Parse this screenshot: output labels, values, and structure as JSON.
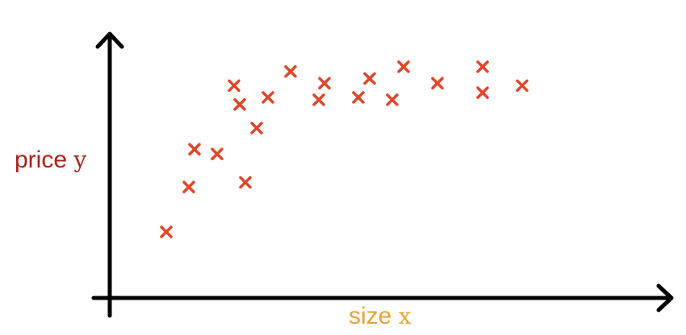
{
  "chart_data": {
    "type": "scatter",
    "title": "",
    "xlabel": "size",
    "xlabel_var": "x",
    "ylabel": "price",
    "ylabel_var": "y",
    "xlim": [
      0,
      100
    ],
    "ylim": [
      0,
      100
    ],
    "grid": false,
    "legend": "none",
    "marker": "x",
    "colors": {
      "axes": "#000000",
      "marker": "#e0462a",
      "xlabel": "#e8a33a",
      "ylabel": "#a9231c"
    },
    "series": [
      {
        "points": [
          {
            "x": 10,
            "y": 28
          },
          {
            "x": 14,
            "y": 47
          },
          {
            "x": 15,
            "y": 63
          },
          {
            "x": 19,
            "y": 61
          },
          {
            "x": 22,
            "y": 90
          },
          {
            "x": 23,
            "y": 82
          },
          {
            "x": 24,
            "y": 49
          },
          {
            "x": 26,
            "y": 72
          },
          {
            "x": 28,
            "y": 85
          },
          {
            "x": 32,
            "y": 96
          },
          {
            "x": 37,
            "y": 84
          },
          {
            "x": 38,
            "y": 91
          },
          {
            "x": 44,
            "y": 85
          },
          {
            "x": 46,
            "y": 93
          },
          {
            "x": 50,
            "y": 84
          },
          {
            "x": 52,
            "y": 98
          },
          {
            "x": 58,
            "y": 91
          },
          {
            "x": 66,
            "y": 98
          },
          {
            "x": 66,
            "y": 87
          },
          {
            "x": 73,
            "y": 90
          }
        ]
      }
    ]
  }
}
